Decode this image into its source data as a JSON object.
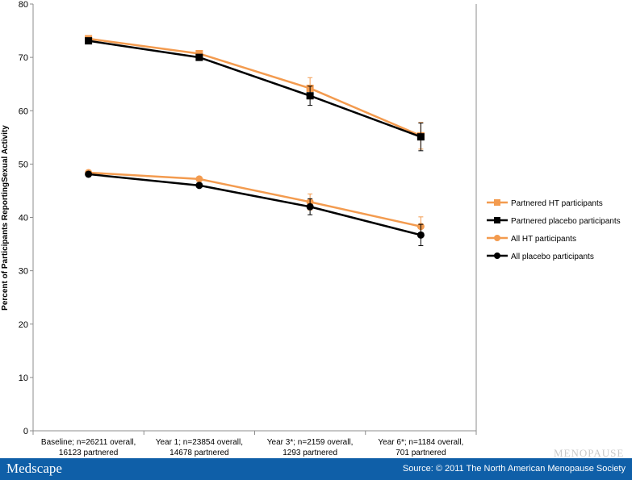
{
  "chart_data": {
    "type": "line",
    "title": "",
    "xlabel": "",
    "ylabel": "Percent of Participants ReportingSexual Activity",
    "ylim": [
      0,
      80
    ],
    "yticks": [
      0,
      10,
      20,
      30,
      40,
      50,
      60,
      70,
      80
    ],
    "grid": false,
    "legend_position": "right",
    "categories": [
      [
        "Baseline; n=26211 overall,",
        "16123 partnered"
      ],
      [
        "Year 1; n=23854 overall,",
        "14678 partnered"
      ],
      [
        "Year 3*; n=2159 overall,",
        "1293 partnered"
      ],
      [
        "Year 6*; n=1184 overall,",
        "701 partnered"
      ]
    ],
    "series": [
      {
        "name": "Partnered HT participants",
        "color": "#f39b4f",
        "marker": "square",
        "values": [
          73.5,
          70.7,
          64.2,
          55.3
        ],
        "error": [
          0.5,
          0.5,
          2.0,
          2.5
        ]
      },
      {
        "name": "Partnered placebo participants",
        "color": "#000000",
        "marker": "square",
        "values": [
          73.1,
          70.0,
          62.8,
          55.1
        ],
        "error": [
          0.5,
          0.5,
          1.8,
          2.6
        ]
      },
      {
        "name": "All HT participants",
        "color": "#f39b4f",
        "marker": "circle",
        "values": [
          48.4,
          47.2,
          42.9,
          38.3
        ],
        "error": [
          0.4,
          0.4,
          1.5,
          1.8
        ]
      },
      {
        "name": "All placebo participants",
        "color": "#000000",
        "marker": "circle",
        "values": [
          48.1,
          46.0,
          42.0,
          36.7
        ],
        "error": [
          0.4,
          0.4,
          1.5,
          2.0
        ]
      }
    ]
  },
  "watermark": "MENOPAUSE",
  "footer": {
    "brand": "Medscape",
    "source": "Source: © 2011 The North American Menopause Society"
  }
}
